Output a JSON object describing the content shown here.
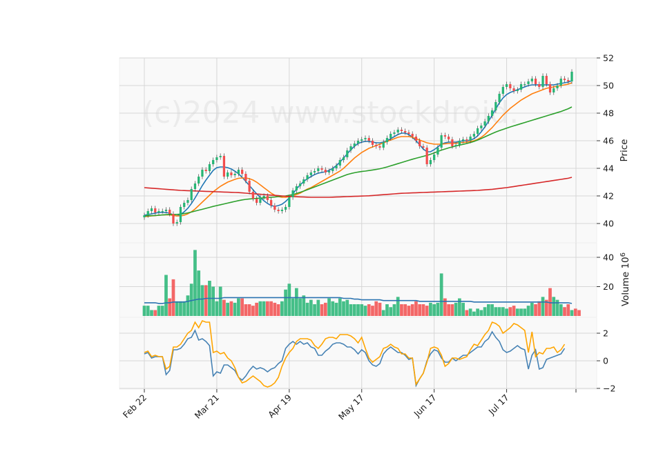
{
  "watermark": "(c)2024 www.stockdroid.",
  "colors": {
    "up": "#26b574",
    "down": "#f24d4d",
    "ma_short": "#1f77b4",
    "ma_mid": "#ff7f0e",
    "ma_long": "#2ca02c",
    "ma_longest": "#d62728",
    "vol_ma": "#2a73b0",
    "osc_a": "#4682b4",
    "osc_b": "#ffa500"
  },
  "chart_data": [
    {
      "panel": "price",
      "type": "candlestick",
      "ylabel": "Price",
      "ylim": [
        39.5,
        52
      ],
      "yticks": [
        "40",
        "42",
        "44",
        "46",
        "48",
        "50",
        "52"
      ],
      "xticks": [
        "Feb 22",
        "Mar 21",
        "Apr 19",
        "May 17",
        "Jun 17",
        "Jul 17"
      ],
      "xtick_index": [
        0,
        20,
        40,
        60,
        80,
        100
      ],
      "grid": true,
      "close": [
        40.6,
        40.9,
        41.1,
        40.8,
        40.9,
        40.9,
        41.0,
        40.7,
        40.0,
        40.1,
        41.2,
        41.5,
        41.7,
        42.5,
        42.9,
        43.4,
        43.9,
        43.8,
        44.3,
        44.6,
        44.8,
        44.9,
        43.4,
        43.7,
        43.5,
        43.6,
        43.9,
        43.6,
        43.1,
        42.3,
        41.8,
        41.5,
        41.9,
        42.0,
        41.7,
        41.3,
        41.0,
        40.9,
        41.0,
        41.2,
        41.9,
        42.4,
        42.7,
        42.9,
        43.2,
        43.5,
        43.7,
        43.8,
        44.0,
        43.9,
        43.7,
        43.8,
        44.0,
        44.2,
        44.6,
        44.8,
        45.3,
        45.6,
        45.8,
        46.0,
        46.1,
        46.2,
        46.0,
        45.7,
        45.6,
        45.5,
        45.9,
        46.2,
        46.5,
        46.6,
        46.8,
        46.7,
        46.6,
        46.5,
        46.3,
        46.0,
        45.6,
        45.5,
        44.3,
        44.6,
        45.0,
        45.5,
        46.4,
        46.3,
        46.1,
        45.6,
        45.7,
        46.0,
        46.1,
        46.0,
        46.3,
        46.5,
        46.9,
        47.1,
        47.4,
        47.8,
        48.2,
        48.8,
        49.4,
        49.9,
        50.1,
        49.8,
        49.6,
        49.7,
        50.1,
        50.1,
        50.3,
        50.5,
        50.1,
        49.9,
        50.7,
        50.1,
        49.5,
        49.8,
        50.0,
        50.5,
        50.4,
        50.3,
        51.0
      ],
      "series": [
        {
          "name": "MA short",
          "values": [
            40.6,
            40.65,
            40.7,
            40.75,
            40.8,
            40.8,
            40.8,
            40.75,
            40.6,
            40.55,
            40.65,
            40.85,
            41.1,
            41.45,
            41.85,
            42.3,
            42.75,
            43.15,
            43.5,
            43.85,
            44.05,
            44.1,
            44.1,
            44.05,
            43.95,
            43.8,
            43.6,
            43.35,
            43.05,
            42.75,
            42.45,
            42.15,
            41.9,
            41.65,
            41.45,
            41.3,
            41.25,
            41.3,
            41.4,
            41.6,
            41.85,
            42.15,
            42.5,
            42.8,
            43.05,
            43.25,
            43.4,
            43.55,
            43.65,
            43.7,
            43.75,
            43.85,
            44.0,
            44.2,
            44.45,
            44.75,
            45.05,
            45.35,
            45.6,
            45.8,
            45.9,
            45.95,
            45.95,
            45.9,
            45.85,
            45.85,
            45.9,
            46.0,
            46.15,
            46.3,
            46.45,
            46.55,
            46.55,
            46.45,
            46.25,
            46.0,
            45.7,
            45.4,
            45.2,
            45.2,
            45.35,
            45.55,
            45.75,
            45.85,
            45.9,
            45.9,
            45.9,
            45.95,
            46.0,
            46.0,
            46.05,
            46.15,
            46.35,
            46.65,
            47.0,
            47.4,
            47.85,
            48.3,
            48.75,
            49.1,
            49.35,
            49.5,
            49.6,
            49.7,
            49.8,
            49.9,
            50.0,
            50.05,
            50.05,
            50.05,
            50.05,
            50.05,
            50.05,
            50.05,
            50.1,
            50.15,
            50.2,
            50.25,
            50.35
          ]
        },
        {
          "name": "MA mid",
          "values": [
            40.5,
            40.52,
            40.55,
            40.57,
            40.6,
            40.62,
            40.63,
            40.63,
            40.58,
            40.55,
            40.55,
            40.6,
            40.7,
            40.85,
            41.05,
            41.3,
            41.55,
            41.8,
            42.05,
            42.3,
            42.5,
            42.7,
            42.85,
            43.0,
            43.1,
            43.2,
            43.28,
            43.3,
            43.3,
            43.25,
            43.15,
            43.0,
            42.8,
            42.6,
            42.4,
            42.2,
            42.05,
            41.95,
            41.9,
            41.9,
            41.95,
            42.0,
            42.1,
            42.2,
            42.35,
            42.5,
            42.6,
            42.75,
            42.9,
            43.05,
            43.2,
            43.35,
            43.5,
            43.65,
            43.8,
            44.0,
            44.25,
            44.5,
            44.75,
            44.95,
            45.15,
            45.3,
            45.45,
            45.55,
            45.65,
            45.75,
            45.85,
            45.95,
            46.05,
            46.15,
            46.25,
            46.3,
            46.3,
            46.3,
            46.25,
            46.15,
            46.05,
            45.95,
            45.85,
            45.8,
            45.75,
            45.75,
            45.75,
            45.78,
            45.8,
            45.8,
            45.82,
            45.85,
            45.88,
            45.9,
            45.95,
            46.0,
            46.1,
            46.25,
            46.45,
            46.7,
            46.95,
            47.25,
            47.55,
            47.85,
            48.1,
            48.35,
            48.55,
            48.75,
            48.95,
            49.1,
            49.25,
            49.4,
            49.5,
            49.6,
            49.7,
            49.8,
            49.85,
            49.9,
            49.95,
            50.0,
            50.05,
            50.1,
            50.2
          ]
        },
        {
          "name": "MA long",
          "values": [
            40.55,
            40.56,
            40.57,
            40.58,
            40.6,
            40.62,
            40.64,
            40.66,
            40.66,
            40.66,
            40.68,
            40.72,
            40.77,
            40.83,
            40.9,
            40.97,
            41.03,
            41.1,
            41.17,
            41.24,
            41.3,
            41.36,
            41.42,
            41.48,
            41.54,
            41.6,
            41.66,
            41.71,
            41.75,
            41.78,
            41.8,
            41.82,
            41.84,
            41.86,
            41.88,
            41.9,
            41.92,
            41.95,
            41.98,
            42.0,
            42.05,
            42.1,
            42.18,
            42.26,
            42.35,
            42.45,
            42.55,
            42.65,
            42.75,
            42.85,
            42.95,
            43.05,
            43.15,
            43.25,
            43.35,
            43.45,
            43.55,
            43.62,
            43.68,
            43.73,
            43.77,
            43.8,
            43.84,
            43.88,
            43.92,
            43.97,
            44.03,
            44.1,
            44.18,
            44.26,
            44.34,
            44.42,
            44.5,
            44.58,
            44.66,
            44.73,
            44.8,
            44.87,
            44.94,
            45.02,
            45.12,
            45.22,
            45.32,
            45.4,
            45.48,
            45.55,
            45.62,
            45.68,
            45.74,
            45.8,
            45.87,
            45.95,
            46.05,
            46.16,
            46.28,
            46.4,
            46.52,
            46.63,
            46.73,
            46.82,
            46.91,
            47.0,
            47.08,
            47.16,
            47.24,
            47.32,
            47.4,
            47.48,
            47.56,
            47.64,
            47.72,
            47.8,
            47.88,
            47.96,
            48.04,
            48.12,
            48.22,
            48.32,
            48.45
          ]
        },
        {
          "name": "MA longest",
          "values": [
            42.6,
            42.58,
            42.56,
            42.54,
            42.52,
            42.5,
            42.48,
            42.46,
            42.44,
            42.42,
            42.4,
            42.39,
            42.38,
            42.37,
            42.36,
            42.35,
            42.34,
            42.33,
            42.32,
            42.31,
            42.3,
            42.29,
            42.28,
            42.27,
            42.26,
            42.25,
            42.24,
            42.22,
            42.2,
            42.18,
            42.16,
            42.14,
            42.12,
            42.1,
            42.08,
            42.06,
            42.04,
            42.02,
            42.0,
            41.98,
            41.96,
            41.95,
            41.94,
            41.93,
            41.92,
            41.91,
            41.9,
            41.9,
            41.9,
            41.9,
            41.9,
            41.9,
            41.91,
            41.92,
            41.93,
            41.94,
            41.95,
            41.96,
            41.97,
            41.98,
            41.99,
            42.0,
            42.01,
            42.03,
            42.05,
            42.07,
            42.09,
            42.11,
            42.13,
            42.15,
            42.17,
            42.19,
            42.2,
            42.21,
            42.22,
            42.23,
            42.24,
            42.25,
            42.26,
            42.27,
            42.28,
            42.29,
            42.3,
            42.31,
            42.32,
            42.33,
            42.34,
            42.35,
            42.36,
            42.37,
            42.38,
            42.39,
            42.4,
            42.42,
            42.44,
            42.46,
            42.48,
            42.51,
            42.54,
            42.57,
            42.6,
            42.64,
            42.68,
            42.72,
            42.76,
            42.8,
            42.84,
            42.88,
            42.92,
            42.96,
            43.0,
            43.04,
            43.08,
            43.12,
            43.16,
            43.2,
            43.24,
            43.28,
            43.35
          ]
        }
      ]
    },
    {
      "panel": "volume",
      "type": "bar",
      "ylabel": "Volume  10",
      "ylabel_exponent": "6",
      "ylim": [
        0,
        45
      ],
      "yticks": [
        "20",
        "40"
      ],
      "values": [
        7,
        7,
        4,
        4,
        7,
        7,
        28,
        12,
        25,
        10,
        10,
        10,
        14,
        22,
        45,
        31,
        21,
        21,
        24,
        20,
        10,
        20,
        11,
        9,
        10,
        9,
        12,
        12,
        8,
        8,
        7,
        9,
        10,
        10,
        10,
        10,
        9,
        8,
        10,
        18,
        22,
        12,
        19,
        12,
        14,
        9,
        11,
        8,
        11,
        8,
        9,
        12,
        10,
        9,
        12,
        10,
        11,
        8,
        8,
        8,
        8,
        7,
        8,
        7,
        10,
        9,
        4,
        8,
        6,
        8,
        13,
        8,
        8,
        7,
        8,
        10,
        8,
        8,
        7,
        9,
        8,
        9,
        29,
        12,
        8,
        8,
        9,
        12,
        9,
        4,
        5,
        3,
        5,
        4,
        6,
        8,
        8,
        6,
        6,
        6,
        5,
        6,
        7,
        5,
        5,
        5,
        7,
        9,
        8,
        10,
        13,
        11,
        19,
        13,
        11,
        8,
        6,
        8,
        4,
        5,
        4
      ],
      "series": [
        {
          "name": "Volume MA",
          "values": [
            9,
            9,
            9,
            9,
            8.5,
            8.5,
            9,
            9,
            9.5,
            9.5,
            9.5,
            9.5,
            10,
            10.5,
            11,
            11.5,
            11.5,
            12,
            12,
            12,
            12,
            12,
            12.5,
            12.5,
            12.5,
            12.5,
            12.5,
            12.5,
            12.5,
            12.5,
            12.5,
            12.5,
            12.5,
            12.5,
            12.5,
            12.5,
            12.5,
            12.5,
            12.5,
            12.5,
            12.5,
            12.5,
            12.5,
            12.5,
            12.5,
            12.5,
            12.5,
            12.5,
            12.5,
            12.5,
            12.5,
            12.5,
            12.5,
            12.5,
            12.5,
            12,
            12,
            12,
            11.5,
            11.5,
            11,
            11,
            11,
            11,
            11,
            11,
            10.5,
            10.5,
            10.5,
            10.5,
            10.5,
            10.5,
            10.5,
            10.5,
            10.5,
            10.5,
            10,
            10,
            10,
            10,
            10,
            10,
            10,
            10,
            10,
            10,
            10,
            10,
            10,
            10,
            10,
            9.5,
            9.5,
            9.5,
            9.5,
            9.5,
            9.5,
            9.5,
            9.5,
            9.5,
            9.5,
            9.5,
            9.5,
            9.5,
            9.5,
            9.5,
            9.5,
            9.5,
            9.5,
            9.5,
            9.5,
            9.5,
            9,
            9,
            9,
            9,
            9,
            9,
            8.5
          ]
        }
      ]
    },
    {
      "panel": "oscillator",
      "type": "line",
      "ylabel": "",
      "ylim": [
        -2,
        3
      ],
      "yticks": [
        "−2",
        "0",
        "2"
      ],
      "series": [
        {
          "name": "",
          "values": [
            0.5,
            0.6,
            0.2,
            0.3,
            0.3,
            0.3,
            -1.0,
            -0.7,
            0.8,
            0.8,
            0.9,
            1.2,
            1.6,
            1.7,
            2.2,
            1.5,
            1.6,
            1.4,
            1.1,
            -1.1,
            -0.8,
            -0.9,
            -0.3,
            -0.3,
            -0.5,
            -0.7,
            -1.2,
            -1.4,
            -1.1,
            -0.7,
            -0.4,
            -0.6,
            -0.5,
            -0.6,
            -0.8,
            -0.6,
            -0.5,
            -0.2,
            0.0,
            0.9,
            1.2,
            1.4,
            1.2,
            1.4,
            1.2,
            1.3,
            1.0,
            0.9,
            0.4,
            0.4,
            0.7,
            0.9,
            1.2,
            1.3,
            1.3,
            1.2,
            1.0,
            1.0,
            0.8,
            0.5,
            0.8,
            0.6,
            0.0,
            -0.3,
            -0.4,
            -0.2,
            0.5,
            0.8,
            1.0,
            0.8,
            0.6,
            0.6,
            0.4,
            0.1,
            0.2,
            -1.8,
            -1.3,
            -0.9,
            0.0,
            0.5,
            0.8,
            0.7,
            0.2,
            -0.1,
            -0.1,
            0.2,
            0.0,
            0.2,
            0.4,
            0.4,
            0.6,
            0.8,
            1.0,
            1.0,
            1.4,
            1.6,
            2.1,
            1.7,
            1.4,
            0.8,
            0.6,
            0.7,
            0.9,
            1.1,
            0.9,
            0.8,
            -0.6,
            0.4,
            0.8,
            -0.6,
            -0.5,
            0.1,
            0.2,
            0.3,
            0.4,
            0.5,
            0.9
          ]
        },
        {
          "name": "",
          "values": [
            0.6,
            0.7,
            0.3,
            0.4,
            0.3,
            0.3,
            -0.6,
            -0.4,
            1.0,
            1.0,
            1.2,
            1.6,
            2.0,
            2.2,
            2.8,
            2.4,
            2.9,
            2.8,
            2.8,
            0.6,
            0.7,
            0.5,
            0.6,
            0.2,
            0.0,
            -0.5,
            -1.2,
            -1.6,
            -1.5,
            -1.3,
            -1.1,
            -1.3,
            -1.5,
            -1.8,
            -1.9,
            -1.8,
            -1.6,
            -1.2,
            -0.4,
            0.2,
            0.6,
            0.9,
            1.4,
            1.6,
            1.6,
            1.6,
            1.5,
            1.1,
            0.9,
            1.2,
            1.6,
            1.7,
            1.7,
            1.6,
            1.9,
            1.9,
            1.9,
            1.8,
            1.6,
            1.3,
            1.7,
            0.9,
            0.2,
            -0.1,
            0.1,
            0.3,
            0.9,
            1.0,
            1.2,
            1.0,
            0.9,
            0.5,
            0.5,
            0.2,
            0.2,
            -1.7,
            -1.3,
            -0.9,
            -0.1,
            0.9,
            1.0,
            0.9,
            0.4,
            -0.4,
            -0.2,
            0.2,
            0.2,
            0.1,
            0.2,
            0.3,
            0.8,
            1.2,
            1.1,
            1.5,
            1.9,
            2.2,
            2.8,
            2.7,
            2.5,
            2.0,
            2.2,
            2.4,
            2.7,
            2.6,
            2.4,
            2.2,
            0.6,
            2.1,
            0.3,
            0.6,
            0.5,
            0.9,
            0.9,
            1.0,
            0.6,
            0.8,
            1.2
          ]
        }
      ]
    }
  ]
}
